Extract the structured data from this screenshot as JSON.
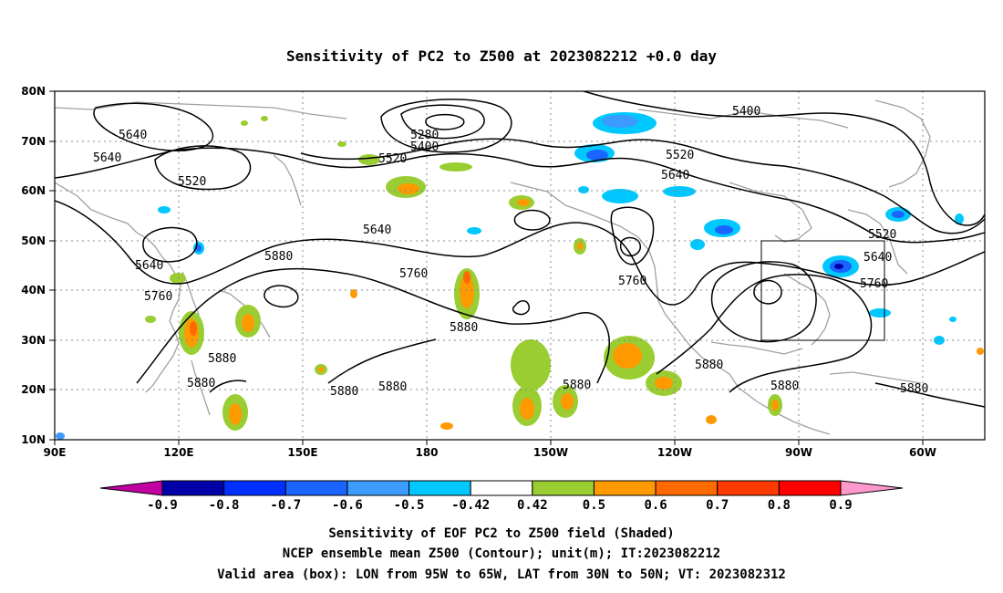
{
  "title": "Sensitivity of PC2 to Z500 at 2023082212 +0.0 day",
  "lat_ticks": [
    "80N",
    "70N",
    "60N",
    "50N",
    "40N",
    "30N",
    "20N",
    "10N"
  ],
  "lon_ticks": [
    "90E",
    "120E",
    "150E",
    "180",
    "150W",
    "120W",
    "90W",
    "60W"
  ],
  "contour_labels": [
    {
      "id": "a",
      "text": "5640"
    },
    {
      "id": "b",
      "text": "5640"
    },
    {
      "id": "c",
      "text": "5520"
    },
    {
      "id": "d",
      "text": "5280"
    },
    {
      "id": "e",
      "text": "5400"
    },
    {
      "id": "f",
      "text": "5520"
    },
    {
      "id": "g",
      "text": "5640"
    },
    {
      "id": "h",
      "text": "5640"
    },
    {
      "id": "i",
      "text": "5760"
    },
    {
      "id": "j",
      "text": "5880"
    },
    {
      "id": "k",
      "text": "5760"
    },
    {
      "id": "l",
      "text": "5880"
    },
    {
      "id": "m",
      "text": "5760"
    },
    {
      "id": "n",
      "text": "5880"
    },
    {
      "id": "o",
      "text": "5880"
    },
    {
      "id": "p",
      "text": "5880"
    },
    {
      "id": "q",
      "text": "5880"
    },
    {
      "id": "r",
      "text": "5880"
    },
    {
      "id": "s",
      "text": "5880"
    },
    {
      "id": "t",
      "text": "5880"
    },
    {
      "id": "u",
      "text": "5880"
    },
    {
      "id": "v",
      "text": "5400"
    },
    {
      "id": "w",
      "text": "5520"
    },
    {
      "id": "x",
      "text": "5640"
    },
    {
      "id": "y",
      "text": "5520"
    },
    {
      "id": "z",
      "text": "5640"
    },
    {
      "id": "aa",
      "text": "5760"
    }
  ],
  "colorbar": {
    "labels": [
      "-0.9",
      "-0.8",
      "-0.7",
      "-0.6",
      "-0.5",
      "-0.42",
      "0.42",
      "0.5",
      "0.6",
      "0.7",
      "0.8",
      "0.9"
    ],
    "colors": [
      "#0000a8",
      "#0030ff",
      "#1a64ff",
      "#3c9bff",
      "#00c8ff",
      "#ffffff",
      "#9acd32",
      "#ff9900",
      "#ff6a00",
      "#ff3a00",
      "#ff0000"
    ],
    "low_color": "#c000a0",
    "high_color": "#ff99cc"
  },
  "box": {
    "label": "Valid area",
    "lon": [
      -95,
      -65
    ],
    "lat": [
      30,
      50
    ]
  },
  "footer": [
    "Sensitivity of EOF PC2 to Z500 field (Shaded)",
    "NCEP ensemble mean Z500 (Contour); unit(m); IT:2023082212",
    "Valid area (box): LON from 95W to 65W, LAT from 30N to 50N; VT: 2023082312"
  ],
  "colors": {
    "coast": "#a0a0a0",
    "contour": "#000000",
    "grid": "#888888"
  }
}
